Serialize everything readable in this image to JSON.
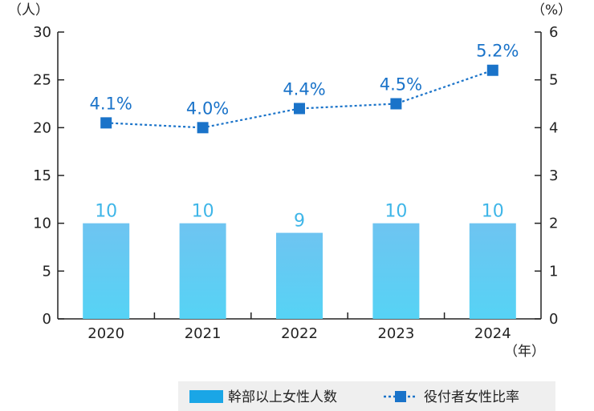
{
  "chart_data": {
    "type": "bar",
    "categories": [
      "2020",
      "2021",
      "2022",
      "2023",
      "2024"
    ],
    "series": [
      {
        "name": "幹部以上女性人数",
        "type": "bar",
        "axis": "left",
        "values": [
          10,
          10,
          9,
          10,
          10
        ],
        "labels": [
          "10",
          "10",
          "9",
          "10",
          "10"
        ],
        "color": "#5cc8f0"
      },
      {
        "name": "役付者女性比率",
        "type": "line",
        "axis": "right",
        "values": [
          4.1,
          4.0,
          4.4,
          4.5,
          5.2
        ],
        "labels": [
          "4.1%",
          "4.0%",
          "4.4%",
          "4.5%",
          "5.2%"
        ],
        "color": "#1a73c9"
      }
    ],
    "ylim_left": [
      0,
      30
    ],
    "yticks_left": [
      "0",
      "5",
      "10",
      "15",
      "20",
      "25",
      "30"
    ],
    "ylim_right": [
      0,
      6
    ],
    "yticks_right": [
      "0",
      "1",
      "2",
      "3",
      "4",
      "5",
      "6"
    ],
    "ylabel_left": "（人）",
    "ylabel_right": "（%）",
    "xlabel": "（年）",
    "legend_position": "bottom-right",
    "grid": false
  }
}
